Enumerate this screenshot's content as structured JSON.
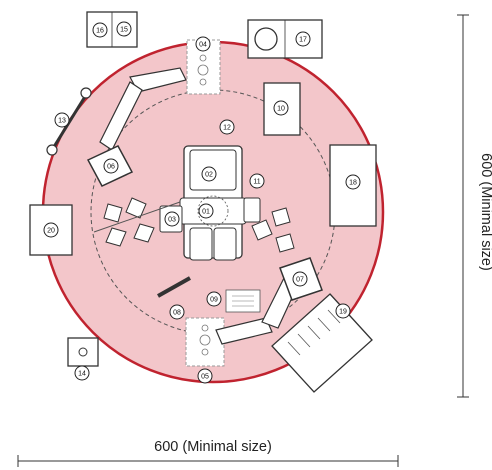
{
  "dimensions": {
    "width_label": "600 (Minimal size)",
    "height_label": "600 (Minimal size)"
  },
  "zone": {
    "fill": "#f3c6ca",
    "stroke": "#c0232f"
  },
  "badges": {
    "b01": "01",
    "b02": "02",
    "b03": "03",
    "b04": "04",
    "b05": "05",
    "b06": "06",
    "b07": "07",
    "b08": "08",
    "b09": "09",
    "b10": "10",
    "b11": "11",
    "b12": "12",
    "b13": "13",
    "b14": "14",
    "b15": "15",
    "b16": "16",
    "b17": "17",
    "b18": "18",
    "b19": "19",
    "b20": "20"
  }
}
